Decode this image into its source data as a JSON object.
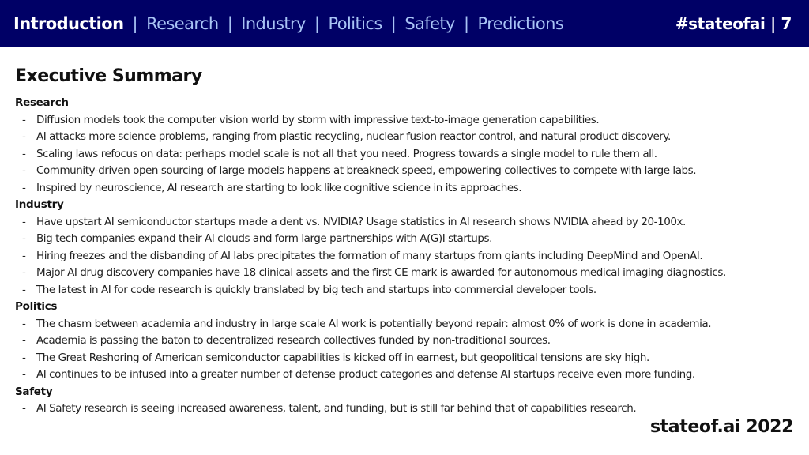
{
  "header": {
    "nav": [
      {
        "label": "Introduction",
        "active": true
      },
      {
        "label": "Research",
        "active": false
      },
      {
        "label": "Industry",
        "active": false
      },
      {
        "label": "Politics",
        "active": false
      },
      {
        "label": "Safety",
        "active": false
      },
      {
        "label": "Predictions",
        "active": false
      }
    ],
    "separator": "|",
    "hashtag_page": "#stateofai | 7"
  },
  "page_title": "Executive Summary",
  "sections": [
    {
      "heading": "Research",
      "bullets": [
        "Diffusion models took the computer vision world by storm with impressive text-to-image generation capabilities.",
        "AI attacks more science problems, ranging from plastic recycling, nuclear fusion reactor control, and natural product discovery.",
        "Scaling laws refocus on data: perhaps model scale is not all that you need. Progress towards a single model to rule them all.",
        "Community-driven open sourcing of large models happens at breakneck speed, empowering collectives to compete with large labs.",
        "Inspired by neuroscience, AI research are starting to look like cognitive science in its approaches."
      ]
    },
    {
      "heading": "Industry",
      "bullets": [
        "Have upstart AI semiconductor startups made a dent vs. NVIDIA? Usage statistics in AI research shows NVIDIA ahead by 20-100x.",
        "Big tech companies expand their AI clouds and form large partnerships with A(G)I startups.",
        "Hiring freezes and the disbanding of AI labs precipitates the formation of many startups from giants including DeepMind and OpenAI.",
        "Major AI drug discovery companies have 18 clinical assets and the first CE mark is awarded for autonomous medical imaging diagnostics.",
        "The latest in AI for code research is quickly translated by big tech and startups into commercial developer tools."
      ]
    },
    {
      "heading": "Politics",
      "bullets": [
        "The chasm between academia and industry in large scale AI work is potentially beyond repair: almost 0% of work is done in academia.",
        "Academia is passing the baton to decentralized research collectives funded by non-traditional sources.",
        "The Great Reshoring of American semiconductor capabilities is kicked off in earnest, but geopolitical tensions are sky high.",
        "AI continues to be infused into a greater number of defense product categories and defense AI startups receive even more funding."
      ]
    },
    {
      "heading": "Safety",
      "bullets": [
        "AI Safety research is seeing increased awareness, talent, and funding, but is still far behind that of capabilities research."
      ]
    }
  ],
  "bullet_glyph": "-",
  "footer": "stateof.ai 2022",
  "colors": {
    "header_bg": "#000066",
    "nav_active": "#ffffff",
    "nav_inactive": "#a9c4f5"
  }
}
